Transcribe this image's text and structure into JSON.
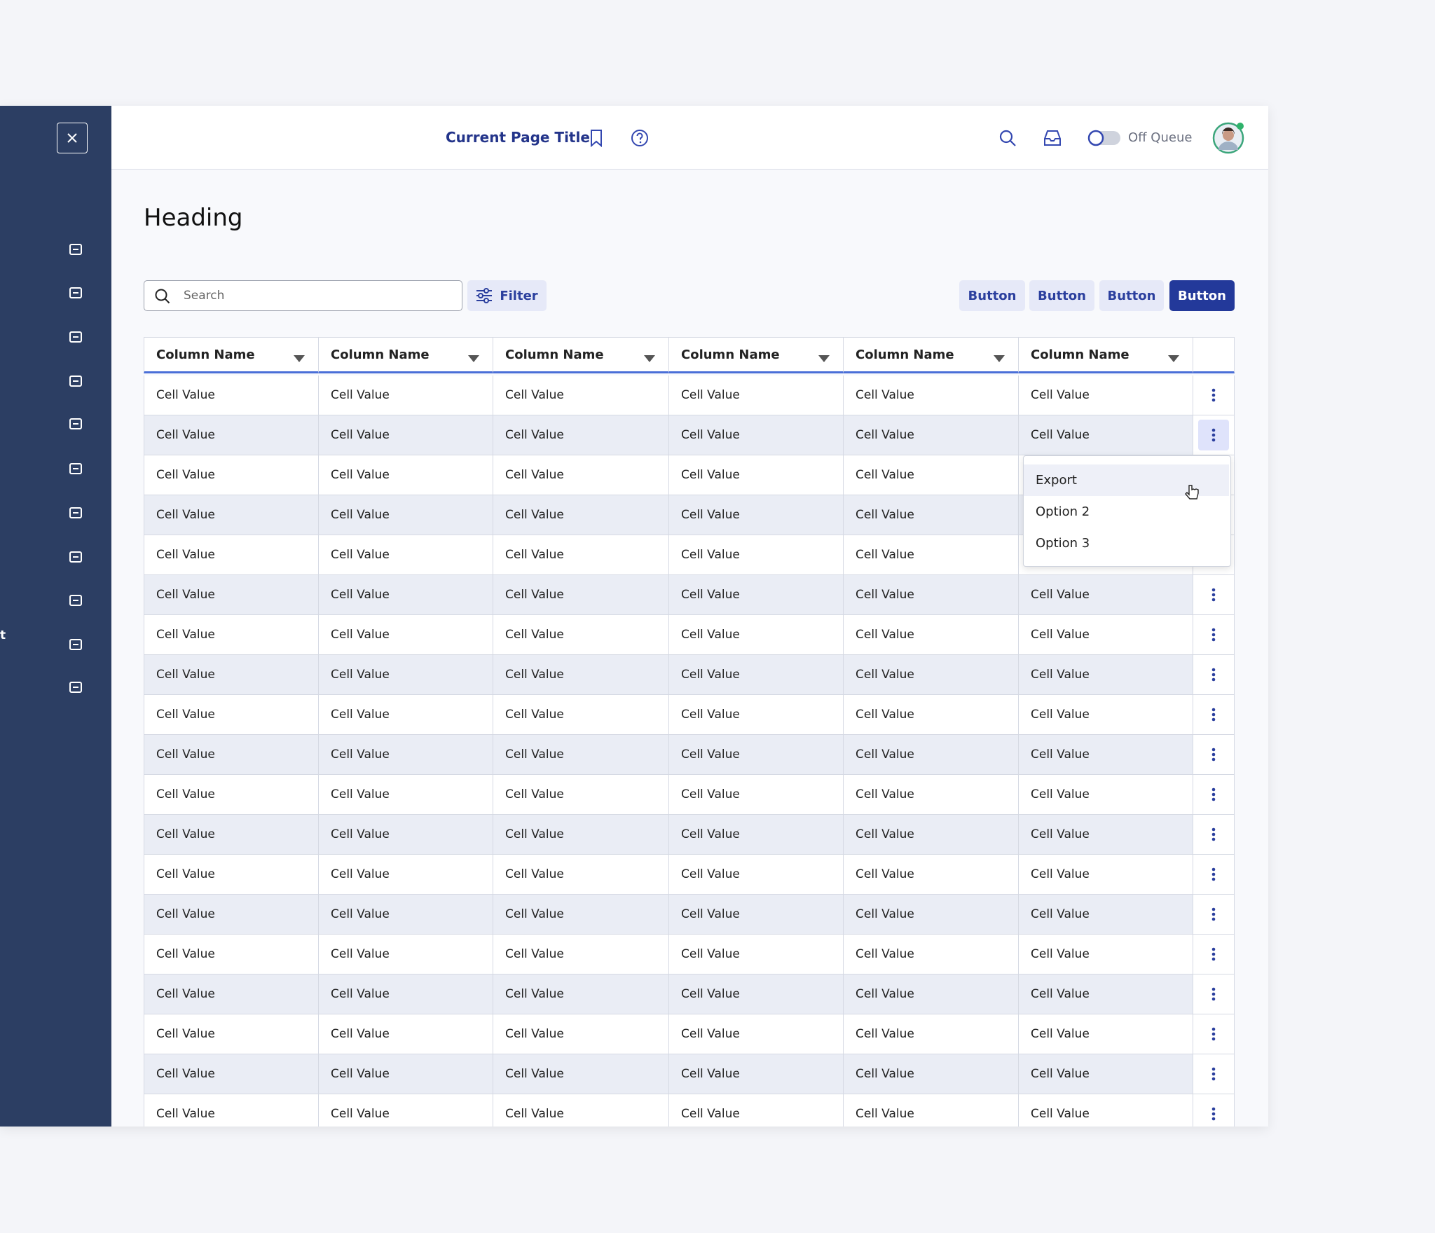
{
  "sidebar_fragment": "t",
  "header": {
    "title": "Current Page Title",
    "toggle_label": "Off Queue"
  },
  "heading": "Heading",
  "search_placeholder": "Search",
  "filter_label": "Filter",
  "buttons": [
    "Button",
    "Button",
    "Button",
    "Button"
  ],
  "table": {
    "columns": [
      "Column Name",
      "Column Name",
      "Column Name",
      "Column Name",
      "Column Name",
      "Column Name"
    ],
    "rows": [
      [
        "Cell Value",
        "Cell Value",
        "Cell Value",
        "Cell Value",
        "Cell Value",
        "Cell Value"
      ],
      [
        "Cell Value",
        "Cell Value",
        "Cell Value",
        "Cell Value",
        "Cell Value",
        "Cell Value"
      ],
      [
        "Cell Value",
        "Cell Value",
        "Cell Value",
        "Cell Value",
        "Cell Value"
      ],
      [
        "Cell Value",
        "Cell Value",
        "Cell Value",
        "Cell Value",
        "Cell Value"
      ],
      [
        "Cell Value",
        "Cell Value",
        "Cell Value",
        "Cell Value",
        "Cell Value"
      ],
      [
        "Cell Value",
        "Cell Value",
        "Cell Value",
        "Cell Value",
        "Cell Value",
        "Cell Value"
      ],
      [
        "Cell Value",
        "Cell Value",
        "Cell Value",
        "Cell Value",
        "Cell Value",
        "Cell Value"
      ],
      [
        "Cell Value",
        "Cell Value",
        "Cell Value",
        "Cell Value",
        "Cell Value",
        "Cell Value"
      ],
      [
        "Cell Value",
        "Cell Value",
        "Cell Value",
        "Cell Value",
        "Cell Value",
        "Cell Value"
      ],
      [
        "Cell Value",
        "Cell Value",
        "Cell Value",
        "Cell Value",
        "Cell Value",
        "Cell Value"
      ],
      [
        "Cell Value",
        "Cell Value",
        "Cell Value",
        "Cell Value",
        "Cell Value",
        "Cell Value"
      ],
      [
        "Cell Value",
        "Cell Value",
        "Cell Value",
        "Cell Value",
        "Cell Value",
        "Cell Value"
      ],
      [
        "Cell Value",
        "Cell Value",
        "Cell Value",
        "Cell Value",
        "Cell Value",
        "Cell Value"
      ],
      [
        "Cell Value",
        "Cell Value",
        "Cell Value",
        "Cell Value",
        "Cell Value",
        "Cell Value"
      ],
      [
        "Cell Value",
        "Cell Value",
        "Cell Value",
        "Cell Value",
        "Cell Value",
        "Cell Value"
      ],
      [
        "Cell Value",
        "Cell Value",
        "Cell Value",
        "Cell Value",
        "Cell Value",
        "Cell Value"
      ],
      [
        "Cell Value",
        "Cell Value",
        "Cell Value",
        "Cell Value",
        "Cell Value",
        "Cell Value"
      ],
      [
        "Cell Value",
        "Cell Value",
        "Cell Value",
        "Cell Value",
        "Cell Value",
        "Cell Value"
      ],
      [
        "Cell Value",
        "Cell Value",
        "Cell Value",
        "Cell Value",
        "Cell Value",
        "Cell Value"
      ]
    ]
  },
  "menu": [
    "Export",
    "Option 2",
    "Option 3"
  ]
}
